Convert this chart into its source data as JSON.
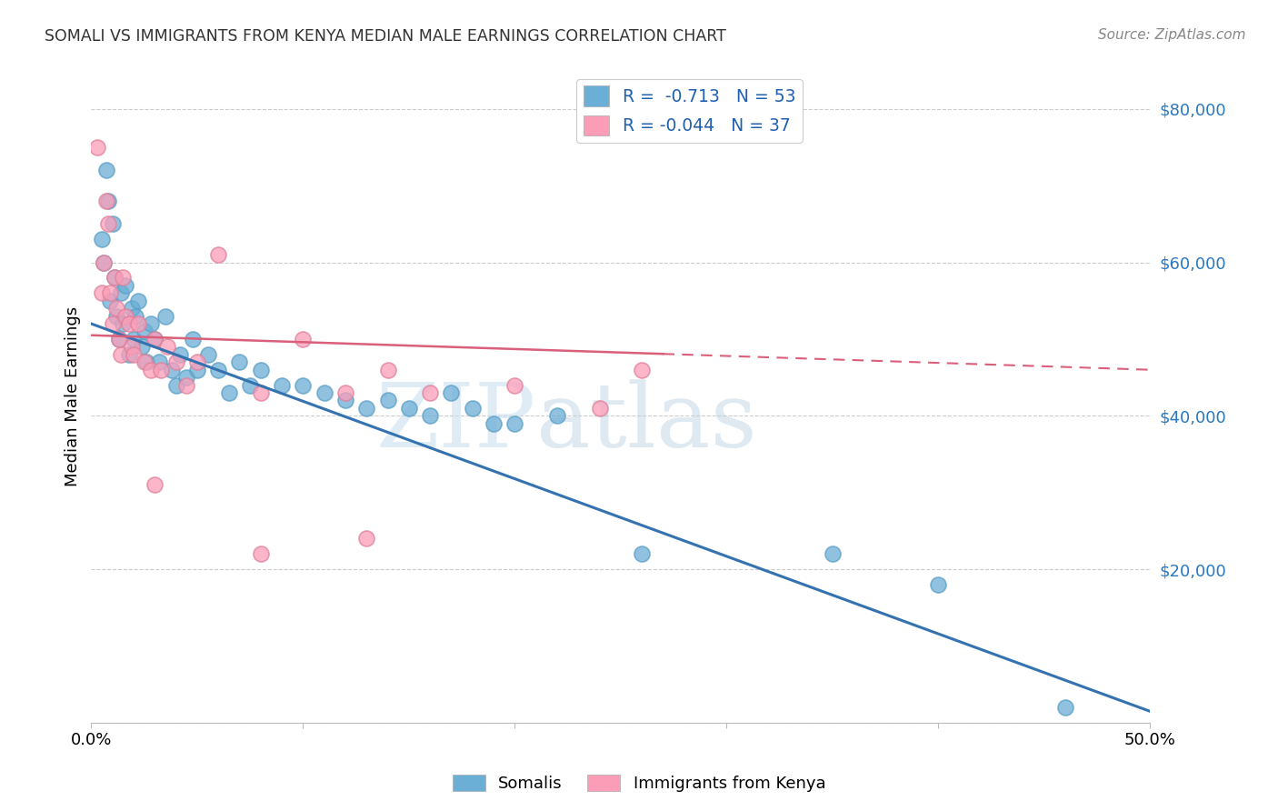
{
  "title": "SOMALI VS IMMIGRANTS FROM KENYA MEDIAN MALE EARNINGS CORRELATION CHART",
  "source": "Source: ZipAtlas.com",
  "ylabel": "Median Male Earnings",
  "y_ticks": [
    0,
    20000,
    40000,
    60000,
    80000
  ],
  "y_tick_labels": [
    "",
    "$20,000",
    "$40,000",
    "$60,000",
    "$80,000"
  ],
  "x_range": [
    0.0,
    0.5
  ],
  "y_range": [
    0,
    85000
  ],
  "somali_color": "#6baed6",
  "somali_edge_color": "#5a9ec6",
  "kenya_color": "#fc9db8",
  "kenya_edge_color": "#e08099",
  "somali_line_color": "#3472b0",
  "kenya_line_color": "#d95f7a",
  "legend_label1": "R =  -0.713   N = 53",
  "legend_label2": "R = -0.044   N = 37",
  "background_color": "#ffffff",
  "grid_color": "#cccccc",
  "watermark": "ZIPatlas",
  "watermark_zip_color": "#b8d4e8",
  "watermark_atlas_color": "#c8d8e8",
  "somali_scatter_x": [
    0.005,
    0.006,
    0.007,
    0.008,
    0.009,
    0.01,
    0.011,
    0.012,
    0.013,
    0.014,
    0.015,
    0.016,
    0.018,
    0.019,
    0.02,
    0.021,
    0.022,
    0.024,
    0.025,
    0.026,
    0.028,
    0.03,
    0.032,
    0.035,
    0.038,
    0.04,
    0.042,
    0.045,
    0.048,
    0.05,
    0.055,
    0.06,
    0.065,
    0.07,
    0.075,
    0.08,
    0.09,
    0.1,
    0.11,
    0.12,
    0.13,
    0.14,
    0.15,
    0.16,
    0.17,
    0.18,
    0.19,
    0.2,
    0.22,
    0.26,
    0.35,
    0.4,
    0.46
  ],
  "somali_scatter_y": [
    63000,
    60000,
    72000,
    68000,
    55000,
    65000,
    58000,
    53000,
    50000,
    56000,
    52000,
    57000,
    48000,
    54000,
    50000,
    53000,
    55000,
    49000,
    51000,
    47000,
    52000,
    50000,
    47000,
    53000,
    46000,
    44000,
    48000,
    45000,
    50000,
    46000,
    48000,
    46000,
    43000,
    47000,
    44000,
    46000,
    44000,
    44000,
    43000,
    42000,
    41000,
    42000,
    41000,
    40000,
    43000,
    41000,
    39000,
    39000,
    40000,
    22000,
    22000,
    18000,
    2000
  ],
  "kenya_scatter_x": [
    0.003,
    0.005,
    0.006,
    0.007,
    0.008,
    0.009,
    0.01,
    0.011,
    0.012,
    0.013,
    0.014,
    0.015,
    0.016,
    0.018,
    0.019,
    0.02,
    0.022,
    0.025,
    0.028,
    0.03,
    0.033,
    0.036,
    0.04,
    0.045,
    0.05,
    0.06,
    0.08,
    0.1,
    0.12,
    0.14,
    0.16,
    0.2,
    0.24,
    0.26,
    0.03,
    0.08,
    0.13
  ],
  "kenya_scatter_y": [
    75000,
    56000,
    60000,
    68000,
    65000,
    56000,
    52000,
    58000,
    54000,
    50000,
    48000,
    58000,
    53000,
    52000,
    49000,
    48000,
    52000,
    47000,
    46000,
    50000,
    46000,
    49000,
    47000,
    44000,
    47000,
    61000,
    43000,
    50000,
    43000,
    46000,
    43000,
    44000,
    41000,
    46000,
    31000,
    22000,
    24000
  ],
  "somali_line_x0": 0.0,
  "somali_line_y0": 52000,
  "somali_line_x1": 0.5,
  "somali_line_y1": 1500,
  "kenya_line_x0": 0.0,
  "kenya_line_y0": 50500,
  "kenya_line_x1": 0.5,
  "kenya_line_y1": 46000
}
